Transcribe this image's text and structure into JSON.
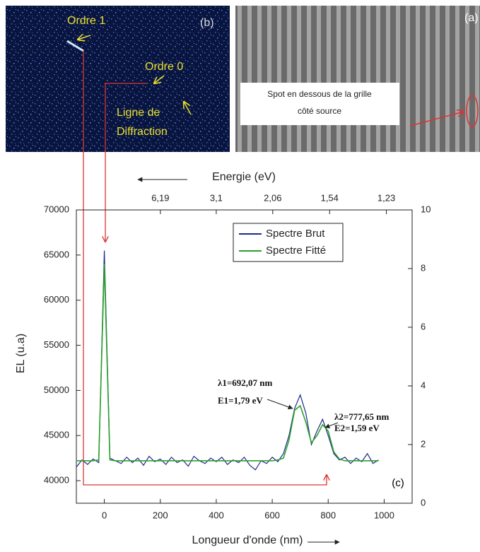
{
  "chart_data": {
    "type": "line",
    "xlabel": "Longueur d'onde (nm)",
    "ylabel": "EL (u.a)",
    "x2label": "Energie (eV)",
    "panel_label": "(c)",
    "xlim": [
      -100,
      1100
    ],
    "xticks": [
      0,
      200,
      400,
      600,
      800,
      1000
    ],
    "ylim": [
      37500,
      70000
    ],
    "yticks": [
      40000,
      45000,
      50000,
      55000,
      60000,
      65000,
      70000
    ],
    "y2lim": [
      0,
      10
    ],
    "y2ticks": [
      0,
      2,
      4,
      6,
      8,
      10
    ],
    "x2ticks": [
      {
        "value": 6.19,
        "label": "6,19"
      },
      {
        "value": 3.1,
        "label": "3,1"
      },
      {
        "value": 2.06,
        "label": "2,06"
      },
      {
        "value": 1.54,
        "label": "1,54"
      },
      {
        "value": 1.23,
        "label": "1,23"
      }
    ],
    "legend": "top-center",
    "grid": false,
    "x": [
      -100,
      -80,
      -60,
      -40,
      -20,
      0,
      20,
      40,
      60,
      80,
      100,
      120,
      140,
      160,
      180,
      200,
      220,
      240,
      260,
      280,
      300,
      320,
      340,
      360,
      380,
      400,
      420,
      440,
      460,
      480,
      500,
      520,
      540,
      560,
      580,
      600,
      620,
      640,
      660,
      680,
      700,
      720,
      740,
      760,
      780,
      800,
      820,
      840,
      860,
      880,
      900,
      920,
      940,
      960,
      980
    ],
    "series": [
      {
        "name": "Spectre Brut",
        "color": "#1f2a8c",
        "values": [
          41500,
          42300,
          41800,
          42400,
          42000,
          65500,
          42500,
          42200,
          41900,
          42600,
          42000,
          42500,
          41700,
          42700,
          42100,
          42400,
          41800,
          42600,
          42000,
          42300,
          41600,
          42700,
          42200,
          41900,
          42500,
          42100,
          42600,
          41800,
          42300,
          42000,
          42600,
          41700,
          41200,
          42200,
          41900,
          42600,
          42100,
          43000,
          45000,
          48000,
          49500,
          47500,
          44000,
          45500,
          46800,
          45000,
          43000,
          42300,
          42600,
          41900,
          42500,
          42100,
          43000,
          41900,
          42300
        ]
      },
      {
        "name": "Spectre Fitté",
        "color": "#2ca02c",
        "values": [
          42200,
          42200,
          42200,
          42200,
          42300,
          64000,
          42300,
          42200,
          42200,
          42200,
          42200,
          42200,
          42200,
          42200,
          42200,
          42200,
          42200,
          42200,
          42200,
          42200,
          42200,
          42200,
          42200,
          42200,
          42200,
          42200,
          42200,
          42200,
          42200,
          42200,
          42200,
          42200,
          42200,
          42200,
          42200,
          42200,
          42300,
          42500,
          44500,
          47800,
          48300,
          46500,
          44200,
          45000,
          46200,
          45500,
          43200,
          42400,
          42200,
          42200,
          42200,
          42200,
          42200,
          42200,
          42200
        ]
      }
    ],
    "annotations": [
      "λ1=692,07 nm",
      "E1=1,79 eV",
      "λ2=777,65 nm",
      "E2=1,59 eV"
    ]
  },
  "images": {
    "b": {
      "label": "(b)",
      "texts": [
        "Ordre 1",
        "Ordre 0",
        "Ligne de",
        "Diffraction"
      ]
    },
    "a": {
      "label": "(a)",
      "texts": [
        "Spot en dessous de la grille",
        "côté source"
      ]
    }
  }
}
